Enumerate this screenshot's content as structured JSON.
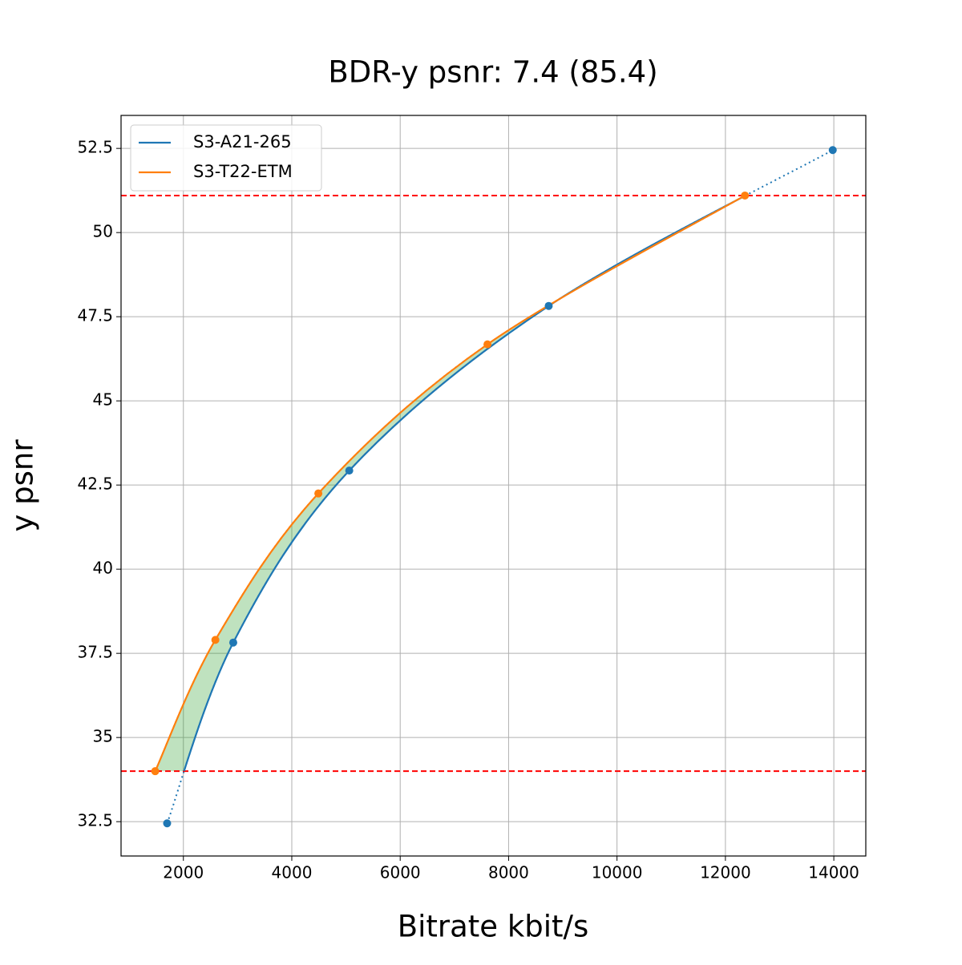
{
  "chart_data": {
    "type": "rd-curve",
    "title": "BDR-y psnr: 7.4 (85.4)",
    "x_label": "Bitrate kbit/s",
    "y_label": "y psnr",
    "series": [
      {
        "name": "S3-A21-265",
        "color": "#1f77b4",
        "x": [
          1700,
          2920,
          5060,
          8740,
          13980
        ],
        "values": [
          32.45,
          37.82,
          42.93,
          47.82,
          52.45
        ]
      },
      {
        "name": "S3-T22-ETM",
        "color": "#ff7f0e",
        "x": [
          1480,
          2590,
          4490,
          7610,
          12360
        ],
        "values": [
          34.0,
          37.9,
          42.25,
          46.68,
          51.1
        ]
      }
    ],
    "hlines": [
      34.0,
      51.1
    ],
    "hline_color": "#ff0000",
    "fill_color": "#2ca02c",
    "xlim": [
      850,
      14590
    ],
    "ylim": [
      31.48,
      53.48
    ],
    "xticks": [
      2000,
      4000,
      6000,
      8000,
      10000,
      12000,
      14000
    ],
    "yticks": [
      32.5,
      35.0,
      37.5,
      40.0,
      42.5,
      45.0,
      47.5,
      50.0,
      52.5
    ],
    "grid": true,
    "legend": "upper left"
  }
}
